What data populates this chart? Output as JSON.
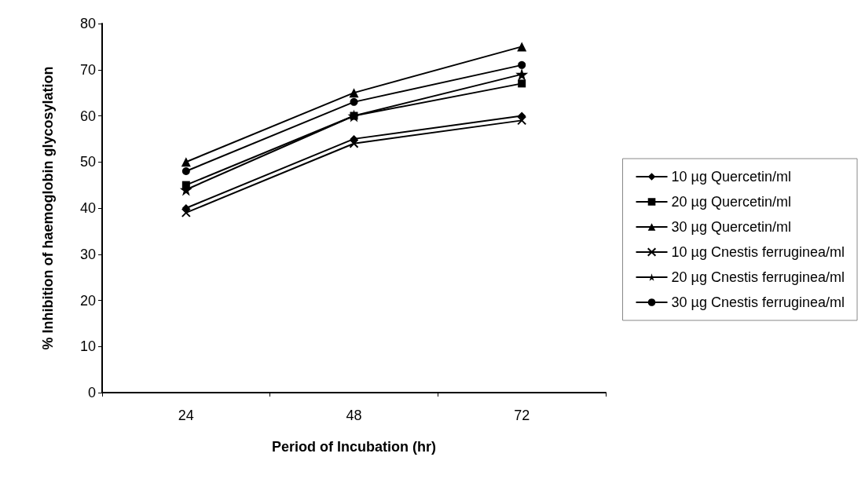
{
  "chart_data": {
    "type": "line",
    "xlabel": "Period of Incubation (hr)",
    "ylabel": "% Inhibition of haemoglobin glycosylation",
    "categories": [
      "24",
      "48",
      "72"
    ],
    "ylim": [
      0,
      80
    ],
    "yticks": [
      0,
      10,
      20,
      30,
      40,
      50,
      60,
      70,
      80
    ],
    "grid": false,
    "legend": "right",
    "series": [
      {
        "name": "10 µg Quercetin/ml",
        "color": "#000000",
        "marker": "diamond",
        "values": [
          40,
          55,
          60
        ]
      },
      {
        "name": "20 µg Quercetin/ml",
        "color": "#000000",
        "marker": "square",
        "values": [
          45,
          60,
          67
        ]
      },
      {
        "name": "30 µg Quercetin/ml",
        "color": "#000000",
        "marker": "triangle",
        "values": [
          50,
          65,
          75
        ]
      },
      {
        "name": "10 µg Cnestis ferruginea/ml",
        "color": "#000000",
        "marker": "cross",
        "values": [
          39,
          54,
          59
        ]
      },
      {
        "name": "20 µg Cnestis ferruginea/ml",
        "color": "#000000",
        "marker": "star",
        "values": [
          44,
          60,
          69
        ]
      },
      {
        "name": "30 µg Cnestis ferruginea/ml",
        "color": "#000000",
        "marker": "circle",
        "values": [
          48,
          63,
          71
        ]
      }
    ]
  }
}
